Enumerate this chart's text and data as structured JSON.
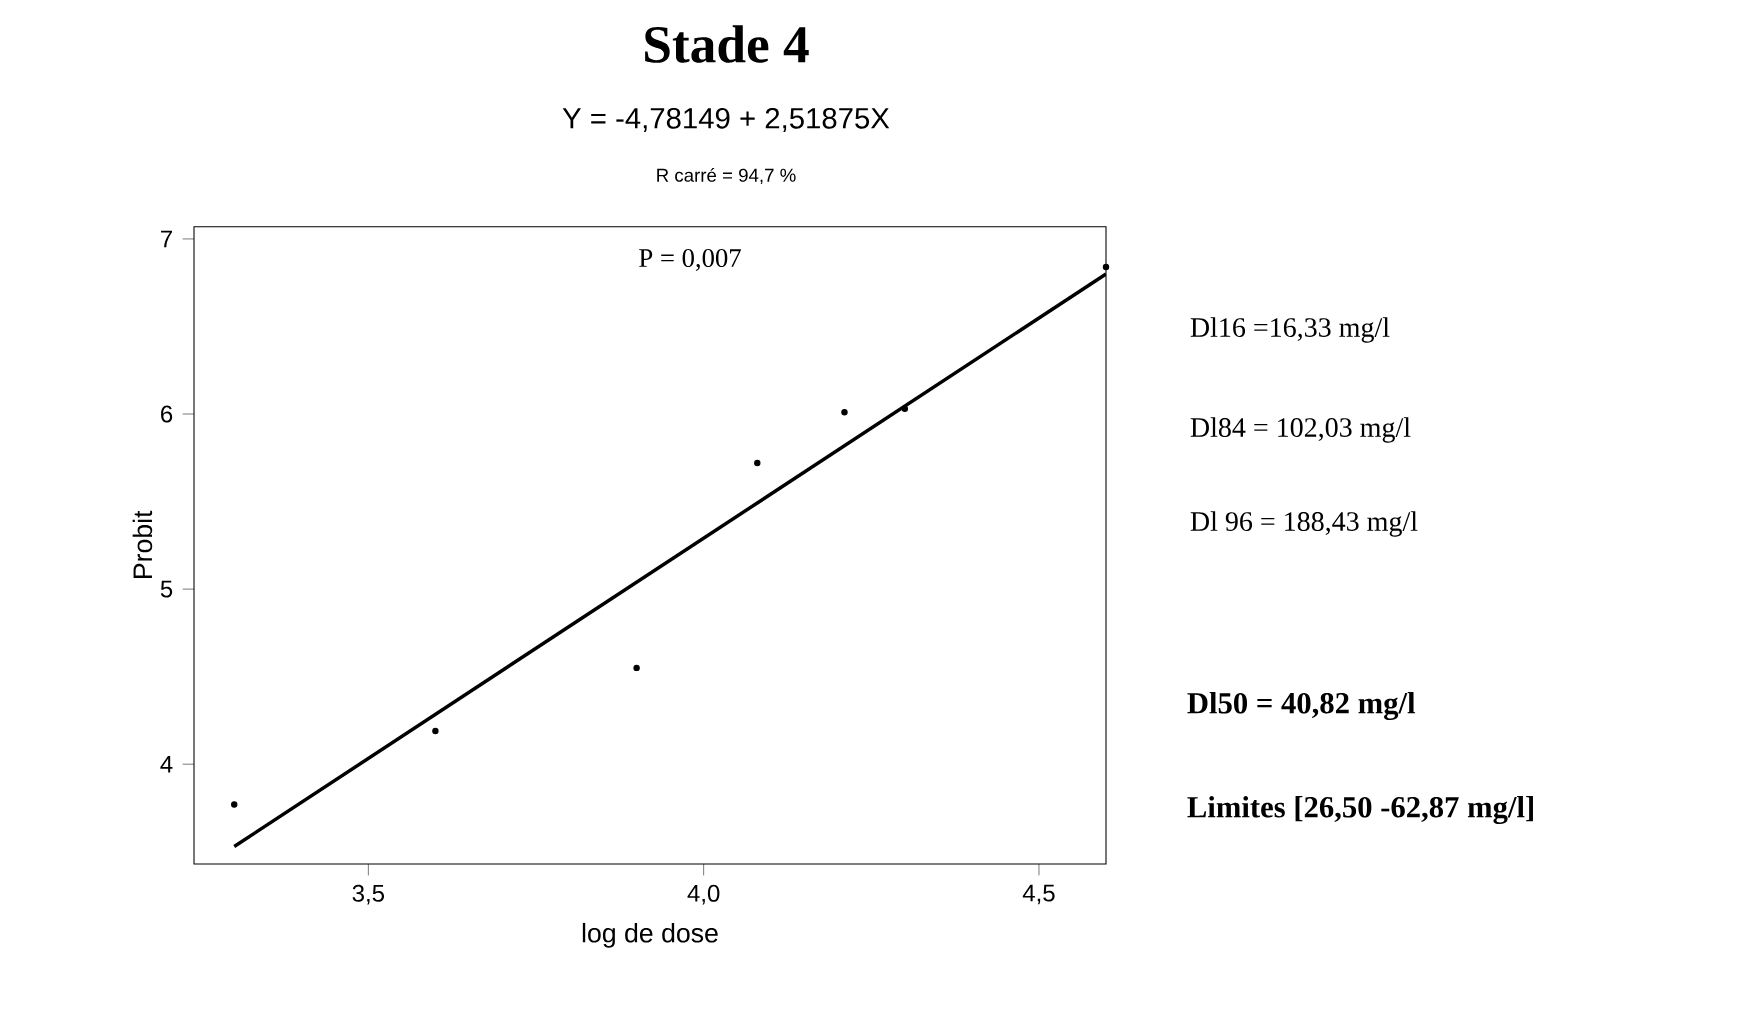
{
  "chart_data": {
    "type": "scatter",
    "title": "Stade 4",
    "subtitle": "Y = -4,78149 + 2,51875X",
    "xlabel": "log de dose",
    "ylabel": "Probit",
    "series": [
      {
        "color": "#000000",
        "marker": "circle",
        "x": [
          3.3,
          3.6,
          3.9,
          4.08,
          4.21,
          4.3,
          4.6
        ],
        "values": [
          3.77,
          4.19,
          4.55,
          5.72,
          6.01,
          6.03,
          6.84
        ]
      },
      {
        "type": "line",
        "color": "#000000",
        "marker": "none",
        "x": [
          3.3,
          4.6
        ],
        "values": [
          3.53,
          6.8
        ]
      }
    ],
    "xlim": [
      3.24,
      4.6
    ],
    "ylim": [
      3.43,
      7.07
    ],
    "xticks": [
      {
        "value": 3.5,
        "label": "3,5"
      },
      {
        "value": 4.0,
        "label": "4,0"
      },
      {
        "value": 4.5,
        "label": "4,5"
      }
    ],
    "yticks": [
      4,
      5,
      6,
      7
    ],
    "annotations": [
      "R carré = 94,7 %",
      "P = 0,007",
      "Dl16 =16,33 mg/l",
      "Dl84 = 102,03 mg/l",
      "Dl 96 = 188,43 mg/l",
      "Dl50 = 40,82 mg/l",
      "Limites [26,50 -62,87 mg/l]"
    ],
    "grid": false
  }
}
